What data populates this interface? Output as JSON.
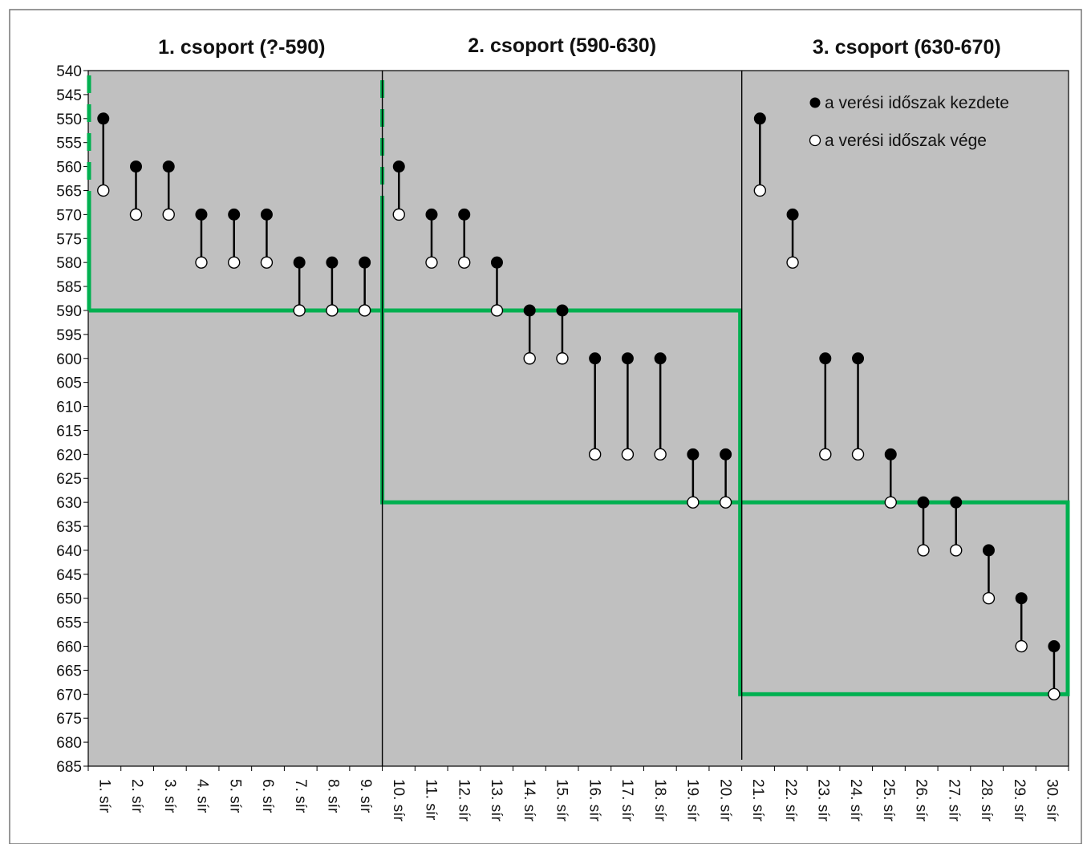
{
  "chart_data": {
    "type": "dumbbell",
    "y_inverted": true,
    "ylim": [
      540,
      685
    ],
    "ytick_step": 5,
    "group_titles": [
      "1. csoport (?-590)",
      "2. csoport (590-630)",
      "3. csoport (630-670)"
    ],
    "categories": [
      "1. sír",
      "2. sír",
      "3. sír",
      "4. sír",
      "5. sír",
      "6. sír",
      "7. sír",
      "8. sír",
      "9. sír",
      "10. sír",
      "11. sír",
      "12. sír",
      "13. sír",
      "14. sír",
      "15. sír",
      "16. sír",
      "17. sír",
      "18. sír",
      "19. sír",
      "20. sír",
      "21. sír",
      "22. sír",
      "23. sír",
      "24. sír",
      "25. sír",
      "26. sír",
      "27. sír",
      "28. sír",
      "29. sír",
      "30. sír"
    ],
    "series": [
      {
        "name": "a verési időszak kezdete",
        "marker": "filled",
        "values": [
          550,
          560,
          560,
          570,
          570,
          570,
          580,
          580,
          580,
          560,
          570,
          570,
          580,
          590,
          590,
          600,
          600,
          600,
          620,
          620,
          550,
          570,
          600,
          600,
          620,
          630,
          630,
          640,
          650,
          660
        ]
      },
      {
        "name": "a verési időszak vége",
        "marker": "open",
        "values": [
          565,
          570,
          570,
          580,
          580,
          580,
          590,
          590,
          590,
          570,
          580,
          580,
          590,
          600,
          600,
          620,
          620,
          620,
          630,
          630,
          565,
          580,
          620,
          620,
          630,
          640,
          640,
          650,
          660,
          670
        ]
      }
    ],
    "group_boundaries_after": [
      9,
      20
    ],
    "group_ranges": [
      [
        540,
        590
      ],
      [
        590,
        630
      ],
      [
        630,
        670
      ]
    ],
    "legend_placement": "top-right",
    "colors": {
      "plot_background": "#c0c0c0",
      "frame_color": "#00b050",
      "marker_color": "#000000",
      "open_marker_fill": "#ffffff"
    }
  }
}
